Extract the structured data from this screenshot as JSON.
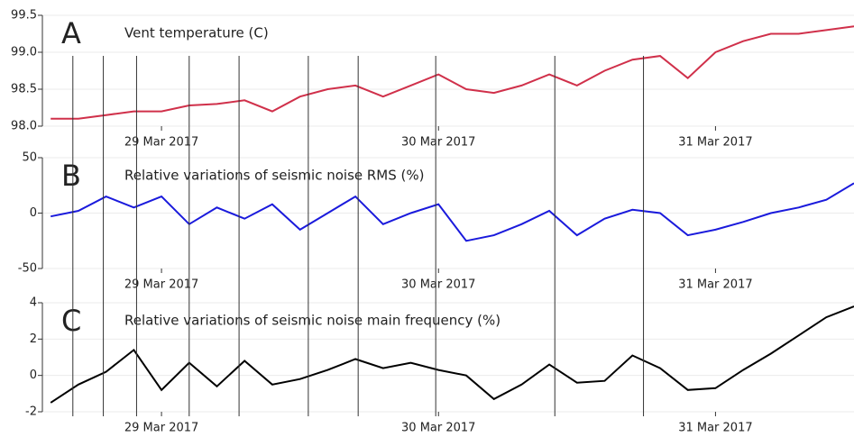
{
  "chart_data": [
    {
      "type": "line",
      "label": "A",
      "title": "Vent temperature (C)",
      "color": "#d0304a",
      "x": [
        28.6,
        28.7,
        28.8,
        28.9,
        29.0,
        29.1,
        29.2,
        29.3,
        29.4,
        29.5,
        29.6,
        29.7,
        29.8,
        29.9,
        30.0,
        30.1,
        30.2,
        30.3,
        30.4,
        30.5,
        30.6,
        30.7,
        30.8,
        30.9,
        31.0,
        31.1,
        31.2,
        31.3,
        31.4,
        31.5
      ],
      "values": [
        98.1,
        98.1,
        98.15,
        98.2,
        98.2,
        98.28,
        98.3,
        98.35,
        98.2,
        98.4,
        98.5,
        98.55,
        98.4,
        98.55,
        98.7,
        98.5,
        98.45,
        98.55,
        98.7,
        98.55,
        98.75,
        98.9,
        98.95,
        98.65,
        99.0,
        99.15,
        99.25,
        99.25,
        99.3,
        99.35
      ],
      "xlim": [
        28.57,
        31.5
      ],
      "xticks": [
        {
          "value": 29,
          "label": "29 Mar 2017"
        },
        {
          "value": 30,
          "label": "30 Mar 2017"
        },
        {
          "value": 31,
          "label": "31 Mar 2017"
        }
      ],
      "ylim": [
        98,
        99.5
      ],
      "yticks": [
        {
          "value": 98,
          "label": "98.0"
        },
        98.5,
        {
          "value": 99,
          "label": "99.0"
        },
        99.5
      ],
      "grid": true
    },
    {
      "type": "line",
      "label": "B",
      "title": "Relative variations of seismic noise RMS (%)",
      "color": "#1a1adc",
      "x": [
        28.6,
        28.7,
        28.8,
        28.9,
        29.0,
        29.1,
        29.2,
        29.3,
        29.4,
        29.5,
        29.6,
        29.7,
        29.8,
        29.9,
        30.0,
        30.1,
        30.2,
        30.3,
        30.4,
        30.5,
        30.6,
        30.7,
        30.8,
        30.9,
        31.0,
        31.1,
        31.2,
        31.3,
        31.4,
        31.5
      ],
      "values": [
        -3,
        2,
        15,
        5,
        15,
        -10,
        5,
        -5,
        8,
        -15,
        0,
        15,
        -10,
        0,
        8,
        -25,
        -20,
        -10,
        2,
        -20,
        -5,
        3,
        0,
        -20,
        -15,
        -8,
        0,
        5,
        12,
        27
      ],
      "xlim": [
        28.57,
        31.5
      ],
      "xticks": [
        {
          "value": 29,
          "label": "29 Mar 2017"
        },
        {
          "value": 30,
          "label": "30 Mar 2017"
        },
        {
          "value": 31,
          "label": "31 Mar 2017"
        }
      ],
      "ylim": [
        -50,
        50
      ],
      "yticks": [
        -50,
        0,
        50
      ],
      "grid": true
    },
    {
      "type": "line",
      "label": "C",
      "title": "Relative variations of seismic noise main frequency (%)",
      "color": "#000000",
      "x": [
        28.6,
        28.7,
        28.8,
        28.9,
        29.0,
        29.1,
        29.2,
        29.3,
        29.4,
        29.5,
        29.6,
        29.7,
        29.8,
        29.9,
        30.0,
        30.1,
        30.2,
        30.3,
        30.4,
        30.5,
        30.6,
        30.7,
        30.8,
        30.9,
        31.0,
        31.1,
        31.2,
        31.3,
        31.4,
        31.5
      ],
      "values": [
        -1.5,
        -0.5,
        0.2,
        1.4,
        -0.8,
        0.7,
        -0.6,
        0.8,
        -0.5,
        -0.2,
        0.3,
        0.9,
        0.4,
        0.7,
        0.3,
        0.0,
        -1.3,
        -0.5,
        0.6,
        -0.4,
        -0.3,
        1.1,
        0.4,
        -0.8,
        -0.7,
        0.3,
        1.2,
        2.2,
        3.2,
        3.8
      ],
      "xlim": [
        28.57,
        31.5
      ],
      "xticks": [
        {
          "value": 29,
          "label": "29 Mar 2017"
        },
        {
          "value": 30,
          "label": "30 Mar 2017"
        },
        {
          "value": 31,
          "label": "31 Mar 2017"
        }
      ],
      "ylim": [
        -2,
        4
      ],
      "yticks": [
        -2,
        0,
        2,
        4
      ],
      "grid": true
    }
  ],
  "event_x": [
    28.68,
    28.79,
    28.91,
    29.1,
    29.28,
    29.53,
    29.71,
    29.99,
    30.42,
    30.74
  ]
}
